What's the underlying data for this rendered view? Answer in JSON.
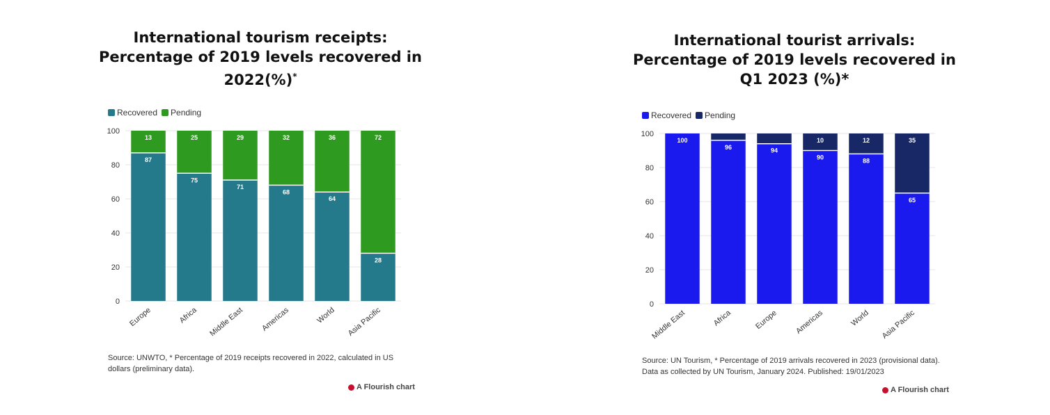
{
  "charts": [
    {
      "title_line1": "International tourism receipts:",
      "title_line2": "Percentage of 2019 levels recovered in",
      "title_line3": "2022(%)",
      "title_sup": "*",
      "legend": [
        {
          "label": "Recovered",
          "color": "#24798a"
        },
        {
          "label": "Pending",
          "color": "#2e9a1f"
        }
      ],
      "source_line1": "Source: UNWTO, * Percentage of 2019 receipts recovered in 2022, calculated in US",
      "source_line2": "dollars (preliminary data).",
      "credit": "A Flourish chart"
    },
    {
      "title_line1": "International tourist arrivals:",
      "title_line2": "Percentage of 2019 levels recovered in",
      "title_line3": "Q1 2023 (%)*",
      "title_sup": "",
      "legend": [
        {
          "label": "Recovered",
          "color": "#1a1aee"
        },
        {
          "label": "Pending",
          "color": "#182766"
        }
      ],
      "source_line1": "Source: UN Tourism, * Percentage of 2019 arrivals recovered in 2023 (provisional data).",
      "source_line2": "Data as collected by UN Tourism, January 2024. Published: 19/01/2023",
      "credit": "A Flourish chart"
    }
  ],
  "chart_data": [
    {
      "type": "bar",
      "stacked": true,
      "title": "International tourism receipts: Percentage of 2019 levels recovered in 2022(%)*",
      "categories": [
        "Europe",
        "Africa",
        "Middle East",
        "Americas",
        "World",
        "Asia Pacific"
      ],
      "series": [
        {
          "name": "Recovered",
          "color": "#24798a",
          "values": [
            87,
            75,
            71,
            68,
            64,
            28
          ]
        },
        {
          "name": "Pending",
          "color": "#2e9a1f",
          "values": [
            13,
            25,
            29,
            32,
            36,
            72
          ]
        }
      ],
      "ylim": [
        0,
        100
      ],
      "yticks": [
        0,
        20,
        40,
        60,
        80,
        100
      ],
      "grid": true,
      "legend_position": "top-left"
    },
    {
      "type": "bar",
      "stacked": true,
      "title": "International tourist arrivals: Percentage of 2019 levels recovered in Q1 2023 (%)*",
      "categories": [
        "Middle East",
        "Africa",
        "Europe",
        "Americas",
        "World",
        "Asia Pacific"
      ],
      "series": [
        {
          "name": "Recovered",
          "color": "#1a1aee",
          "values": [
            100,
            96,
            94,
            90,
            88,
            65
          ]
        },
        {
          "name": "Pending",
          "color": "#182766",
          "values": [
            0,
            4,
            6,
            10,
            12,
            35
          ]
        }
      ],
      "pending_labels_shown": [
        false,
        false,
        false,
        true,
        true,
        true
      ],
      "ylim": [
        0,
        100
      ],
      "yticks": [
        0,
        20,
        40,
        60,
        80,
        100
      ],
      "grid": true,
      "legend_position": "top-left"
    }
  ]
}
